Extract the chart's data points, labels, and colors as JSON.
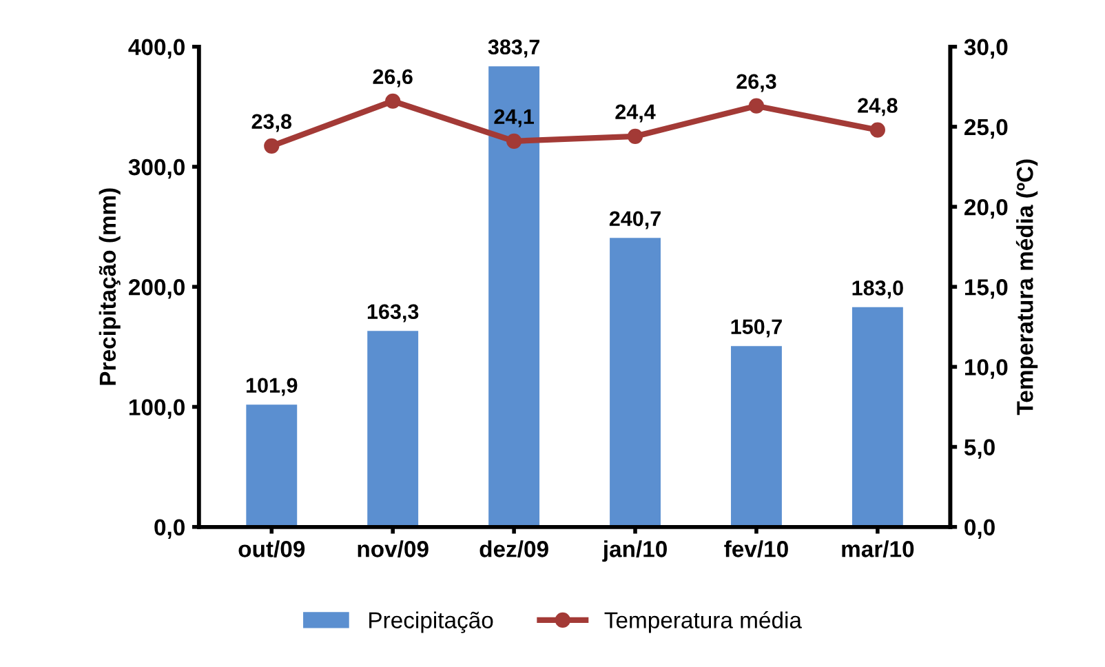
{
  "chart_data": {
    "type": "bar",
    "categories": [
      "out/09",
      "nov/09",
      "dez/09",
      "jan/10",
      "fev/10",
      "mar/10"
    ],
    "ylabel": "Precipitação (mm)",
    "y2label": "Temperatura média (ºC)",
    "ylim": [
      0,
      400
    ],
    "yticks": [
      {
        "value": 0,
        "label": "0,0"
      },
      {
        "value": 100,
        "label": "100,0"
      },
      {
        "value": 200,
        "label": "200,0"
      },
      {
        "value": 300,
        "label": "300,0"
      },
      {
        "value": 400,
        "label": "400,0"
      }
    ],
    "y2lim": [
      0,
      30
    ],
    "y2ticks": [
      {
        "value": 0,
        "label": "0,0"
      },
      {
        "value": 5,
        "label": "5,0"
      },
      {
        "value": 10,
        "label": "10,0"
      },
      {
        "value": 15,
        "label": "15,0"
      },
      {
        "value": 20,
        "label": "20,0"
      },
      {
        "value": 25,
        "label": "25,0"
      },
      {
        "value": 30,
        "label": "30,0"
      }
    ],
    "series": [
      {
        "name": "Precipitação",
        "color": "#5b8fd0",
        "values": [
          101.9,
          163.3,
          383.7,
          240.7,
          150.7,
          183.0
        ],
        "value_labels": [
          "101,9",
          "163,3",
          "383,7",
          "240,7",
          "150,7",
          "183,0"
        ]
      },
      {
        "name": "Temperatura média",
        "type": "line",
        "axis": "y2",
        "color": "#a33a36",
        "marker": "circle",
        "values": [
          23.8,
          26.6,
          24.1,
          24.4,
          26.3,
          24.8
        ],
        "value_labels": [
          "23,8",
          "26,6",
          "24,1",
          "24,4",
          "26,3",
          "24,8"
        ]
      }
    ],
    "grid": false,
    "legend": "bottom"
  }
}
